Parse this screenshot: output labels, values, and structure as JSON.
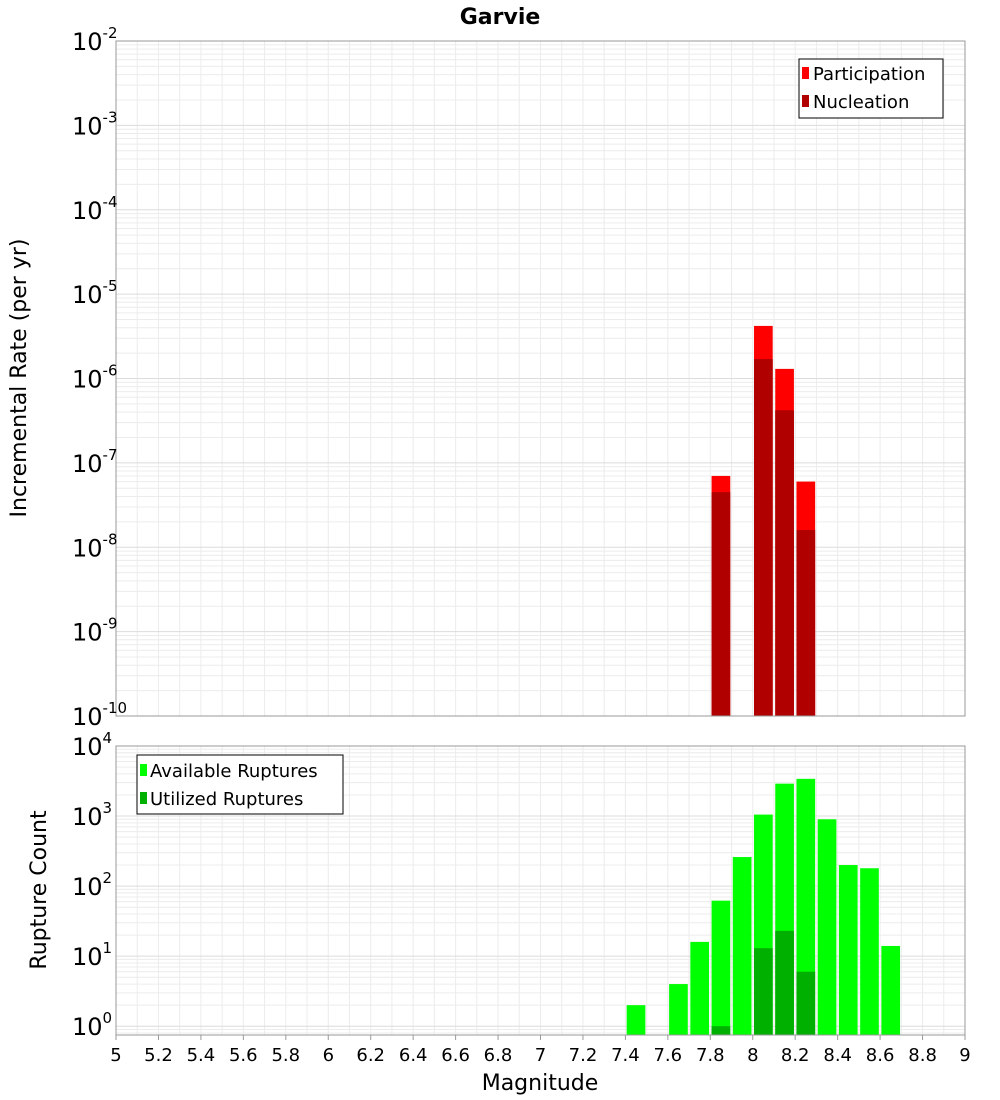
{
  "chart_data": [
    {
      "type": "bar",
      "title": "Garvie",
      "xlabel": "",
      "ylabel": "Incremental Rate (per yr)",
      "yscale": "log",
      "ylim": [
        1e-10,
        0.01
      ],
      "xlim": [
        5,
        9
      ],
      "grid": true,
      "legend_position": "top-right",
      "legend": [
        "Participation",
        "Nucleation"
      ],
      "series": [
        {
          "name": "Participation",
          "color": "#ff0000",
          "x": [
            7.85,
            8.05,
            8.15,
            8.25
          ],
          "values": [
            7e-08,
            4.2e-06,
            1.3e-06,
            6e-08
          ]
        },
        {
          "name": "Nucleation",
          "color": "#b00000",
          "x": [
            7.85,
            8.05,
            8.15,
            8.25
          ],
          "values": [
            4.5e-08,
            1.7e-06,
            4.2e-07,
            1.6e-08
          ]
        }
      ]
    },
    {
      "type": "bar",
      "title": "",
      "xlabel": "Magnitude",
      "ylabel": "Rupture Count",
      "yscale": "log",
      "ylim": [
        0.75,
        10000
      ],
      "xlim": [
        5,
        9
      ],
      "grid": true,
      "legend_position": "top-left",
      "legend": [
        "Available Ruptures",
        "Utilized Ruptures"
      ],
      "series": [
        {
          "name": "Available Ruptures",
          "color": "#00ff00",
          "x": [
            7.45,
            7.65,
            7.75,
            7.85,
            7.95,
            8.05,
            8.15,
            8.25,
            8.35,
            8.45,
            8.55,
            8.65
          ],
          "values": [
            2,
            4,
            16,
            62,
            260,
            1050,
            2900,
            3400,
            900,
            200,
            180,
            14
          ]
        },
        {
          "name": "Utilized Ruptures",
          "color": "#00b000",
          "x": [
            7.85,
            8.05,
            8.15,
            8.25
          ],
          "values": [
            1,
            13,
            23,
            6
          ]
        }
      ]
    }
  ],
  "xticks": [
    "5",
    "5.2",
    "5.4",
    "5.6",
    "5.8",
    "6",
    "6.2",
    "6.4",
    "6.6",
    "6.8",
    "7",
    "7.2",
    "7.4",
    "7.6",
    "7.8",
    "8",
    "8.2",
    "8.4",
    "8.6",
    "8.8",
    "9"
  ],
  "top_yticks": [
    {
      "base": "10",
      "exp": "-2",
      "v": -2
    },
    {
      "base": "10",
      "exp": "-3",
      "v": -3
    },
    {
      "base": "10",
      "exp": "-4",
      "v": -4
    },
    {
      "base": "10",
      "exp": "-5",
      "v": -5
    },
    {
      "base": "10",
      "exp": "-6",
      "v": -6
    },
    {
      "base": "10",
      "exp": "-7",
      "v": -7
    },
    {
      "base": "10",
      "exp": "-8",
      "v": -8
    },
    {
      "base": "10",
      "exp": "-9",
      "v": -9
    },
    {
      "base": "10",
      "exp": "-10",
      "v": -10
    }
  ],
  "bottom_yticks": [
    {
      "base": "10",
      "exp": "4",
      "v": 4
    },
    {
      "base": "10",
      "exp": "3",
      "v": 3
    },
    {
      "base": "10",
      "exp": "2",
      "v": 2
    },
    {
      "base": "10",
      "exp": "1",
      "v": 1
    },
    {
      "base": "10",
      "exp": "0",
      "v": 0
    }
  ]
}
